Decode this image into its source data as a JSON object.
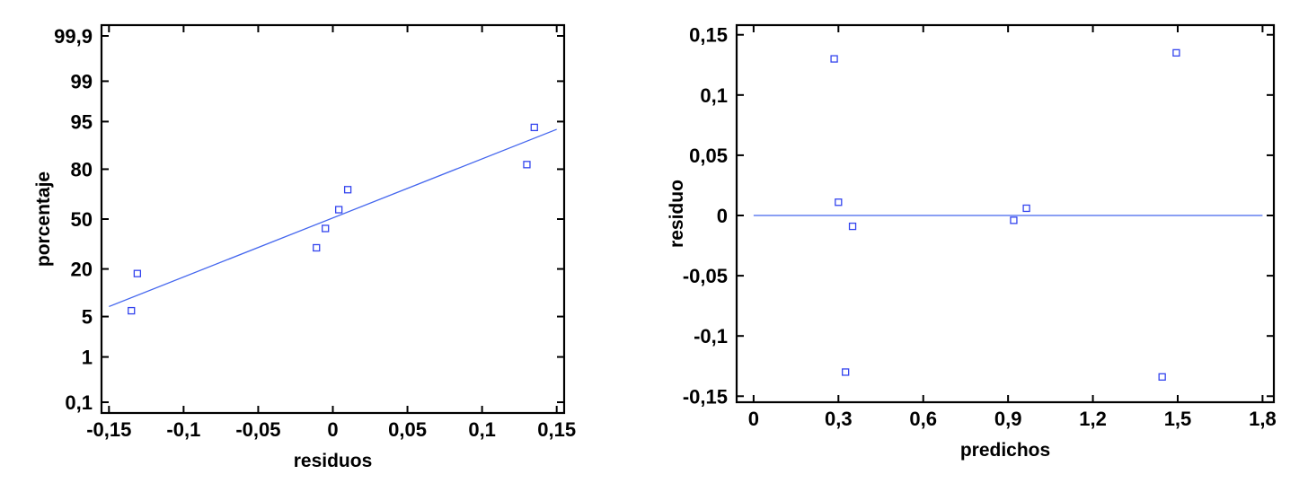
{
  "colors": {
    "marker": "#3344ee",
    "fit_line": "#4466ee",
    "frame": "#000000",
    "background": "#ffffff"
  },
  "chart_data": [
    {
      "type": "scatter",
      "title": "",
      "xlabel": "residuos",
      "ylabel": "porcentaje",
      "xlim": [
        -0.155,
        0.155
      ],
      "x_ticks": [
        -0.15,
        -0.1,
        -0.05,
        0,
        0.05,
        0.1,
        0.15
      ],
      "x_tick_labels": [
        "-0,15",
        "-0,1",
        "-0,05",
        "0",
        "0,05",
        "0,1",
        "0,15"
      ],
      "y_ticks": [
        0.1,
        1,
        5,
        20,
        50,
        80,
        95,
        99,
        99.9
      ],
      "y_tick_labels": [
        "0,1",
        "1",
        "5",
        "20",
        "50",
        "80",
        "95",
        "99",
        "99,9"
      ],
      "y_scale": "normal-probability",
      "grid": false,
      "points": [
        {
          "x": -0.135,
          "y": 6.1
        },
        {
          "x": -0.131,
          "y": 17.9
        },
        {
          "x": -0.011,
          "y": 31.4
        },
        {
          "x": -0.005,
          "y": 43.7
        },
        {
          "x": 0.004,
          "y": 56.3
        },
        {
          "x": 0.01,
          "y": 69.0
        },
        {
          "x": 0.13,
          "y": 82.1
        },
        {
          "x": 0.135,
          "y": 93.9
        }
      ],
      "fit_line": [
        {
          "x": -0.15,
          "y": 7.0
        },
        {
          "x": 0.15,
          "y": 93.5
        }
      ]
    },
    {
      "type": "scatter",
      "title": "",
      "xlabel": "predichos",
      "ylabel": "residuo",
      "xlim": [
        -0.06,
        1.84
      ],
      "ylim": [
        -0.155,
        0.158
      ],
      "x_ticks": [
        0,
        0.3,
        0.6,
        0.9,
        1.2,
        1.5,
        1.8
      ],
      "x_tick_labels": [
        "0",
        "0,3",
        "0,6",
        "0,9",
        "1,2",
        "1,5",
        "1,8"
      ],
      "y_ticks": [
        -0.15,
        -0.1,
        -0.05,
        0,
        0.05,
        0.1,
        0.15
      ],
      "y_tick_labels": [
        "-0,15",
        "-0,1",
        "-0,05",
        "0",
        "0,05",
        "0,1",
        "0,15"
      ],
      "grid": false,
      "points": [
        {
          "x": 0.285,
          "y": 0.13
        },
        {
          "x": 0.3,
          "y": 0.011
        },
        {
          "x": 0.325,
          "y": -0.13
        },
        {
          "x": 0.35,
          "y": -0.009
        },
        {
          "x": 0.92,
          "y": -0.004
        },
        {
          "x": 0.965,
          "y": 0.006
        },
        {
          "x": 1.445,
          "y": -0.134
        },
        {
          "x": 1.495,
          "y": 0.135
        }
      ],
      "fit_line": [
        {
          "x": 0,
          "y": 0
        },
        {
          "x": 1.8,
          "y": 0
        }
      ]
    }
  ]
}
